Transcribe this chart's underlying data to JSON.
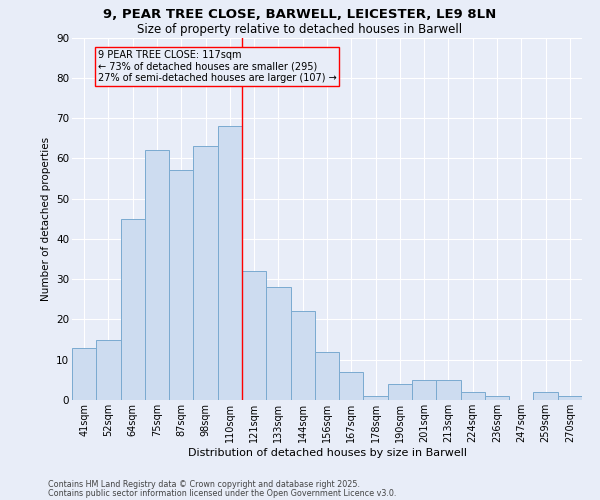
{
  "title_line1": "9, PEAR TREE CLOSE, BARWELL, LEICESTER, LE9 8LN",
  "title_line2": "Size of property relative to detached houses in Barwell",
  "xlabel": "Distribution of detached houses by size in Barwell",
  "ylabel": "Number of detached properties",
  "categories": [
    "41sqm",
    "52sqm",
    "64sqm",
    "75sqm",
    "87sqm",
    "98sqm",
    "110sqm",
    "121sqm",
    "133sqm",
    "144sqm",
    "156sqm",
    "167sqm",
    "178sqm",
    "190sqm",
    "201sqm",
    "213sqm",
    "224sqm",
    "236sqm",
    "247sqm",
    "259sqm",
    "270sqm"
  ],
  "values": [
    13,
    15,
    45,
    62,
    57,
    63,
    68,
    32,
    28,
    22,
    12,
    7,
    1,
    4,
    5,
    5,
    2,
    1,
    0,
    2,
    1
  ],
  "bar_color": "#cddcf0",
  "bar_edge_color": "#7aaad0",
  "background_color": "#e8edf8",
  "grid_color": "#ffffff",
  "ylim": [
    0,
    90
  ],
  "yticks": [
    0,
    10,
    20,
    30,
    40,
    50,
    60,
    70,
    80,
    90
  ],
  "property_line_index": 6,
  "annotation_text": "9 PEAR TREE CLOSE: 117sqm\n← 73% of detached houses are smaller (295)\n27% of semi-detached houses are larger (107) →",
  "footer_line1": "Contains HM Land Registry data © Crown copyright and database right 2025.",
  "footer_line2": "Contains public sector information licensed under the Open Government Licence v3.0."
}
